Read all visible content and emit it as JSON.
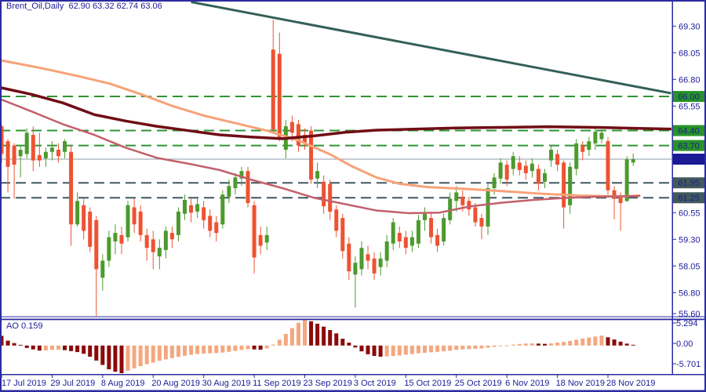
{
  "window": {
    "title": "Brent_Oil,Daily  62.90 63.32 62.74 63.06",
    "symbol": "Brent_Oil",
    "timeframe": "Daily"
  },
  "colors": {
    "background": "#FFFFFF",
    "chrome_navy": "#2B2BA0",
    "text_navy": "#1C1C96",
    "bull_green": "#4C9A2D",
    "bear_red": "#EF5231",
    "ma_salmon": "#F7A278",
    "ma_rose": "#C2606C",
    "ma_maroon": "#700D15",
    "trendline_teal": "#336059",
    "level_green": "#2E9434",
    "level_slate": "#3E5862",
    "current_price_gray": "#8C9DAB",
    "badge_green": "#279327",
    "badge_navy": "#1A1A96",
    "badge_slate": "#415B5B",
    "ao_up_salmon": "#F5A77E",
    "ao_down_maroon": "#8B0A0A"
  },
  "chart_data": {
    "type": "candlestick_with_histogram_indicator",
    "title": "Brent_Oil,Daily",
    "ohlc_header": {
      "open": "62.90",
      "high": "63.32",
      "low": "62.74",
      "close": "63.06"
    },
    "current_price": 63.06,
    "price_axis": {
      "ticks": [
        "69.30",
        "68.05",
        "66.80",
        "65.55",
        "60.55",
        "59.30",
        "58.05",
        "56.80",
        "55.60"
      ],
      "ylim": [
        55.67,
        70.45
      ]
    },
    "badges": [
      {
        "label": "66.00",
        "price": 66.0,
        "type": "green"
      },
      {
        "label": "64.40",
        "price": 64.4,
        "type": "green"
      },
      {
        "label": "63.70",
        "price": 63.7,
        "type": "green"
      },
      {
        "label": "63.06",
        "price": 63.06,
        "type": "navy"
      },
      {
        "label": "61.95",
        "price": 61.95,
        "type": "slate"
      },
      {
        "label": "61.25",
        "price": 61.25,
        "type": "slate"
      }
    ],
    "levels": {
      "green_dashed": [
        66.0,
        64.4,
        63.7
      ],
      "slate_dashed": [
        61.95,
        61.25
      ],
      "gray_solid": [
        63.06
      ]
    },
    "trendline": {
      "i1": 30,
      "p1": 70.43,
      "i2": 106,
      "p2": 66.15
    },
    "date_axis": [
      {
        "i": 0,
        "label": "17 Jul 2019"
      },
      {
        "i": 8,
        "label": "29 Jul 2019"
      },
      {
        "i": 16,
        "label": "8 Aug 2019"
      },
      {
        "i": 24,
        "label": "20 Aug 2019"
      },
      {
        "i": 32,
        "label": "30 Aug 2019"
      },
      {
        "i": 40,
        "label": "11 Sep 2019"
      },
      {
        "i": 48,
        "label": "23 Sep 2019"
      },
      {
        "i": 56,
        "label": "3 Oct 2019"
      },
      {
        "i": 64,
        "label": "15 Oct 2019"
      },
      {
        "i": 72,
        "label": "25 Oct 2019"
      },
      {
        "i": 80,
        "label": "6 Nov 2019"
      },
      {
        "i": 88,
        "label": "18 Nov 2019"
      },
      {
        "i": 96,
        "label": "28 Nov 2019"
      }
    ],
    "candles_format": "[open,high,low,close]",
    "candles": [
      [
        64.6,
        64.7,
        62.9,
        63.3
      ],
      [
        63.9,
        64.0,
        61.5,
        62.7
      ],
      [
        63.7,
        63.8,
        61.2,
        62.8
      ],
      [
        63.2,
        63.7,
        62.2,
        63.5
      ],
      [
        63.3,
        64.5,
        63.1,
        64.3
      ],
      [
        64.2,
        64.6,
        62.5,
        63.0
      ],
      [
        63.25,
        64.3,
        62.7,
        63.0
      ],
      [
        63.1,
        63.6,
        62.7,
        63.4
      ],
      [
        63.4,
        63.9,
        63.0,
        63.6
      ],
      [
        63.5,
        63.8,
        62.9,
        63.2
      ],
      [
        63.4,
        64.0,
        63.1,
        63.9
      ],
      [
        63.4,
        63.7,
        59.0,
        60.0
      ],
      [
        60.0,
        61.5,
        59.9,
        61.1
      ],
      [
        60.9,
        61.2,
        59.3,
        59.7
      ],
      [
        60.6,
        60.8,
        58.7,
        58.95
      ],
      [
        60.2,
        60.4,
        55.7,
        57.9
      ],
      [
        57.5,
        58.6,
        56.9,
        58.3
      ],
      [
        58.3,
        59.7,
        58.0,
        59.4
      ],
      [
        59.2,
        60.0,
        58.6,
        59.6
      ],
      [
        59.5,
        59.9,
        58.6,
        59.1
      ],
      [
        59.4,
        61.1,
        59.2,
        60.9
      ],
      [
        60.8,
        61.2,
        59.6,
        60.0
      ],
      [
        60.6,
        60.9,
        59.2,
        59.5
      ],
      [
        59.5,
        59.8,
        58.3,
        58.9
      ],
      [
        59.3,
        59.7,
        57.9,
        58.7
      ],
      [
        58.5,
        59.3,
        57.9,
        58.9
      ],
      [
        58.8,
        59.9,
        58.4,
        59.7
      ],
      [
        59.6,
        59.9,
        58.9,
        59.3
      ],
      [
        59.5,
        60.8,
        59.2,
        60.6
      ],
      [
        60.5,
        61.4,
        60.2,
        61.15
      ],
      [
        60.9,
        61.2,
        60.1,
        60.55
      ],
      [
        60.6,
        61.3,
        60.3,
        60.95
      ],
      [
        60.8,
        61.1,
        59.8,
        60.2
      ],
      [
        60.4,
        60.7,
        59.4,
        59.7
      ],
      [
        60.1,
        60.4,
        59.2,
        59.6
      ],
      [
        60.0,
        61.6,
        59.8,
        61.4
      ],
      [
        61.3,
        62.1,
        61.0,
        61.8
      ],
      [
        61.7,
        62.4,
        61.4,
        62.2
      ],
      [
        62.15,
        62.7,
        61.8,
        62.5
      ],
      [
        62.5,
        62.7,
        60.8,
        61.0
      ],
      [
        60.9,
        61.1,
        57.7,
        58.45
      ],
      [
        59.5,
        59.9,
        58.6,
        59.0
      ],
      [
        59.15,
        59.9,
        58.8,
        59.5
      ],
      [
        68.2,
        69.6,
        64.3,
        64.45
      ],
      [
        68.0,
        69.0,
        63.9,
        64.1
      ],
      [
        63.5,
        64.9,
        63.1,
        64.6
      ],
      [
        64.8,
        65.1,
        63.9,
        64.3
      ],
      [
        64.7,
        64.9,
        63.4,
        63.7
      ],
      [
        64.2,
        64.5,
        63.5,
        63.85
      ],
      [
        64.4,
        64.6,
        61.9,
        62.1
      ],
      [
        62.15,
        62.9,
        61.7,
        62.5
      ],
      [
        62.0,
        62.3,
        60.5,
        60.85
      ],
      [
        61.9,
        62.1,
        60.2,
        60.6
      ],
      [
        60.7,
        60.9,
        59.4,
        59.7
      ],
      [
        60.3,
        60.5,
        58.4,
        58.75
      ],
      [
        59.1,
        59.4,
        57.4,
        57.8
      ],
      [
        57.65,
        58.5,
        56.1,
        58.2
      ],
      [
        57.9,
        59.2,
        57.6,
        58.9
      ],
      [
        58.6,
        59.0,
        57.9,
        58.3
      ],
      [
        58.4,
        58.7,
        57.4,
        57.7
      ],
      [
        58.0,
        58.7,
        57.6,
        58.4
      ],
      [
        58.3,
        59.5,
        58.0,
        59.2
      ],
      [
        59.1,
        60.3,
        58.8,
        60.1
      ],
      [
        59.6,
        59.9,
        58.9,
        59.2
      ],
      [
        59.4,
        59.7,
        58.6,
        58.9
      ],
      [
        59.0,
        59.7,
        58.7,
        59.4
      ],
      [
        59.1,
        60.45,
        58.9,
        60.2
      ],
      [
        60.2,
        60.8,
        59.7,
        60.5
      ],
      [
        60.3,
        60.6,
        59.1,
        59.4
      ],
      [
        59.5,
        59.8,
        58.7,
        59.0
      ],
      [
        59.2,
        60.5,
        59.0,
        60.3
      ],
      [
        60.2,
        61.5,
        60.0,
        61.2
      ],
      [
        61.1,
        61.8,
        60.6,
        61.5
      ],
      [
        61.3,
        61.6,
        60.6,
        60.9
      ],
      [
        61.1,
        61.3,
        60.4,
        60.7
      ],
      [
        60.8,
        61.0,
        59.9,
        60.1
      ],
      [
        60.3,
        60.5,
        59.3,
        59.9
      ],
      [
        59.9,
        61.9,
        59.5,
        61.7
      ],
      [
        61.7,
        62.4,
        61.4,
        62.2
      ],
      [
        62.15,
        63.1,
        61.9,
        62.9
      ],
      [
        62.8,
        63.0,
        61.8,
        62.1
      ],
      [
        62.6,
        63.4,
        62.3,
        63.2
      ],
      [
        62.9,
        63.2,
        62.3,
        62.55
      ],
      [
        62.75,
        63.0,
        62.1,
        62.4
      ],
      [
        62.5,
        63.1,
        62.2,
        62.85
      ],
      [
        62.6,
        62.8,
        61.6,
        61.9
      ],
      [
        62.0,
        62.6,
        61.7,
        62.4
      ],
      [
        63.0,
        63.7,
        62.7,
        63.5
      ],
      [
        63.3,
        63.5,
        62.5,
        62.8
      ],
      [
        62.9,
        63.0,
        59.8,
        60.8
      ],
      [
        60.9,
        62.9,
        60.5,
        62.7
      ],
      [
        62.6,
        64.0,
        62.3,
        63.8
      ],
      [
        63.7,
        63.9,
        63.0,
        63.4
      ],
      [
        63.5,
        64.1,
        63.2,
        63.9
      ],
      [
        63.8,
        64.5,
        63.5,
        64.35
      ],
      [
        64.0,
        64.45,
        63.8,
        64.3
      ],
      [
        63.9,
        64.1,
        61.4,
        61.6
      ],
      [
        61.6,
        61.8,
        60.25,
        61.2
      ],
      [
        61.3,
        61.5,
        59.7,
        61.0
      ],
      [
        61.1,
        63.2,
        61.05,
        63.05
      ],
      [
        62.9,
        63.32,
        62.74,
        63.06
      ]
    ],
    "ma_lines": [
      {
        "name": "sma-salmon",
        "color_key": "ma_salmon",
        "width": 3,
        "points": [
          [
            0,
            67.7
          ],
          [
            50,
            67.35
          ],
          [
            100,
            66.95
          ],
          [
            140,
            66.6
          ],
          [
            180,
            66.1
          ],
          [
            220,
            65.55
          ],
          [
            260,
            65.1
          ],
          [
            300,
            64.75
          ],
          [
            340,
            64.4
          ],
          [
            380,
            63.95
          ],
          [
            420,
            63.3
          ],
          [
            450,
            62.7
          ],
          [
            480,
            62.2
          ],
          [
            510,
            61.9
          ],
          [
            545,
            61.75
          ],
          [
            590,
            61.67
          ],
          [
            640,
            61.56
          ],
          [
            690,
            61.44
          ],
          [
            740,
            61.35
          ],
          [
            790,
            61.31
          ],
          [
            815,
            61.35
          ]
        ]
      },
      {
        "name": "sma-rose",
        "color_key": "ma_rose",
        "width": 2.5,
        "points": [
          [
            0,
            65.88
          ],
          [
            40,
            65.3
          ],
          [
            80,
            64.7
          ],
          [
            120,
            64.2
          ],
          [
            160,
            63.6
          ],
          [
            200,
            63.12
          ],
          [
            240,
            62.85
          ],
          [
            280,
            62.55
          ],
          [
            320,
            62.1
          ],
          [
            360,
            61.7
          ],
          [
            400,
            61.25
          ],
          [
            440,
            60.95
          ],
          [
            480,
            60.65
          ],
          [
            520,
            60.53
          ],
          [
            560,
            60.55
          ],
          [
            600,
            60.85
          ],
          [
            640,
            61.02
          ],
          [
            680,
            61.15
          ],
          [
            720,
            61.24
          ],
          [
            760,
            61.3
          ],
          [
            815,
            61.33
          ]
        ]
      },
      {
        "name": "sma-maroon",
        "color_key": "ma_maroon",
        "width": 3.5,
        "points": [
          [
            0,
            66.42
          ],
          [
            40,
            66.1
          ],
          [
            80,
            65.7
          ],
          [
            120,
            65.15
          ],
          [
            160,
            64.85
          ],
          [
            200,
            64.6
          ],
          [
            240,
            64.4
          ],
          [
            280,
            64.2
          ],
          [
            320,
            64.1
          ],
          [
            360,
            64.02
          ],
          [
            400,
            64.15
          ],
          [
            440,
            64.32
          ],
          [
            480,
            64.42
          ],
          [
            530,
            64.47
          ],
          [
            580,
            64.52
          ],
          [
            640,
            64.55
          ],
          [
            700,
            64.58
          ],
          [
            760,
            64.55
          ],
          [
            820,
            64.5
          ],
          [
            856,
            64.47
          ]
        ]
      }
    ],
    "ao": {
      "name": "AO",
      "current": "0.159",
      "header": "AO 0.159",
      "ticks": [
        "5.294",
        "0.00",
        "-5.701"
      ],
      "ylim": [
        -5.701,
        5.294
      ],
      "values": [
        2.0,
        1.0,
        0.5,
        0.15,
        -0.5,
        -0.8,
        -1.05,
        -1.0,
        -0.9,
        -0.85,
        -0.95,
        -1.15,
        -1.35,
        -1.7,
        -2.3,
        -3.1,
        -4.0,
        -4.9,
        -5.4,
        -5.701,
        -5.2,
        -4.7,
        -4.25,
        -3.85,
        -3.5,
        -3.15,
        -2.85,
        -2.6,
        -2.35,
        -2.1,
        -1.9,
        -1.75,
        -1.65,
        -1.6,
        -1.55,
        -1.45,
        -1.3,
        -1.1,
        -0.9,
        -0.75,
        -0.8,
        -0.85,
        -0.6,
        0.2,
        1.2,
        2.4,
        3.6,
        4.7,
        5.294,
        5.0,
        4.5,
        3.9,
        3.2,
        2.5,
        1.4,
        0.6,
        -0.4,
        -1.2,
        -1.8,
        -2.15,
        -2.3,
        -2.25,
        -2.15,
        -2.05,
        -1.9,
        -1.75,
        -1.6,
        -1.5,
        -1.4,
        -1.3,
        -1.2,
        -1.05,
        -0.9,
        -0.8,
        -0.72,
        -0.68,
        -0.6,
        -0.45,
        -0.28,
        -0.12,
        0.05,
        0.2,
        0.32,
        0.4,
        0.45,
        0.4,
        0.35,
        0.45,
        0.6,
        0.75,
        0.95,
        1.2,
        1.45,
        1.65,
        1.85,
        2.05,
        1.7,
        1.25,
        0.8,
        0.4,
        0.159
      ]
    }
  }
}
